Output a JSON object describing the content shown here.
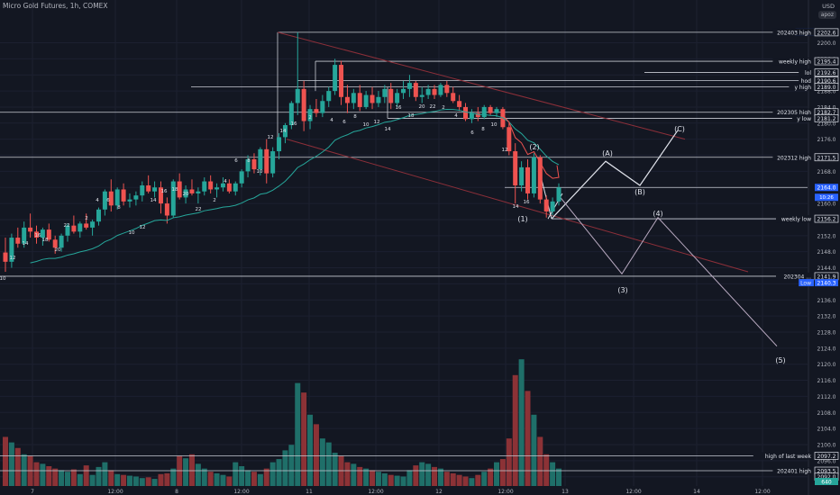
{
  "header": {
    "symbol_title": "Micro Gold Futures, 1h, COMEX",
    "currency": "USD",
    "account_tag": "apoz"
  },
  "chart_data": {
    "type": "candlestick",
    "symbol": "Micro Gold Futures",
    "timeframe": "1h",
    "exchange": "COMEX",
    "price_axis": {
      "labels": [
        "2200.0",
        "2196.0",
        "2192.0",
        "2188.0",
        "2184.0",
        "2180.0",
        "2176.0",
        "2172.0",
        "2168.0",
        "2164.0",
        "2160.0",
        "2156.0",
        "2152.0",
        "2148.0",
        "2144.0",
        "2140.0",
        "2136.0",
        "2132.0",
        "2128.0",
        "2124.0",
        "2120.0",
        "2116.0",
        "2112.0",
        "2108.0",
        "2104.0",
        "2100.0",
        "2096.0",
        "2092.0"
      ],
      "range": [
        2088.0,
        2204.0
      ]
    },
    "time_axis": {
      "labels": [
        "7",
        "12:00",
        "8",
        "12:00",
        "11",
        "12:00",
        "12",
        "12:00",
        "13",
        "12:00",
        "14",
        "12:00"
      ]
    },
    "colors": {
      "background": "#131722",
      "up": "#26a69a",
      "down": "#ef5350",
      "vol_up": "#1f6f69",
      "vol_down": "#8c3236",
      "ema": "#26a69a",
      "projection": "#e0e3eb",
      "alt_projection": "#b8a9c0",
      "channel": "#8c2f39"
    },
    "level_tags": [
      {
        "name": "High",
        "price": "2202.6",
        "style": "blue"
      },
      {
        "name": "202403 high",
        "price": "2202.6",
        "style": "box"
      },
      {
        "name": "weekly high",
        "price": "2195.4",
        "style": "box"
      },
      {
        "name": "lol",
        "price": "2192.6",
        "style": "box"
      },
      {
        "name": "hod",
        "price": "2190.6",
        "style": "box"
      },
      {
        "name": "y high",
        "price": "2189.0",
        "style": "box"
      },
      {
        "name": "202305 high",
        "price": "2182.7",
        "style": "box"
      },
      {
        "name": "y low",
        "price": "2181.2",
        "style": "box"
      },
      {
        "name": "202312 high",
        "price": "2171.5",
        "style": "box"
      },
      {
        "name": "",
        "price": "2164.0",
        "style": "blue"
      },
      {
        "name": "weekly low",
        "price": "2156.2",
        "style": "box"
      },
      {
        "name": "202304 ...",
        "price": "2141.9",
        "style": "box"
      },
      {
        "name": "Low",
        "price": "2140.3",
        "style": "blue"
      },
      {
        "name": "high of last week",
        "price": "2097.2",
        "style": "box"
      },
      {
        "name": "202401 high",
        "price": "2093.5",
        "style": "box"
      },
      {
        "name": "",
        "price": "2092.0",
        "style": "plain"
      }
    ],
    "countdown": "10:26",
    "bottom_tag": "640",
    "wave_labels": [
      "(1)",
      "(2)",
      "(3)",
      "(4)",
      "(5)",
      "(A)",
      "(B)",
      "(C)"
    ],
    "bar_counts": [
      "10",
      "12",
      "14",
      "16",
      "18",
      "20",
      "22",
      "2",
      "4",
      "6",
      "8",
      "10",
      "12",
      "14",
      "16",
      "18",
      "20",
      "22",
      "2",
      "4",
      "6",
      "8",
      "10",
      "12",
      "14",
      "16",
      "2",
      "4",
      "6",
      "8",
      "10",
      "12",
      "14",
      "16",
      "18",
      "20",
      "22",
      "2",
      "4",
      "6",
      "8",
      "10",
      "12",
      "14",
      "16"
    ],
    "candles": [
      [
        2147.8,
        2151.5,
        2143.0,
        2145.5
      ],
      [
        2145.5,
        2152.5,
        2144.0,
        2151.5
      ],
      [
        2151.5,
        2154.0,
        2149.0,
        2150.0
      ],
      [
        2150.0,
        2155.5,
        2149.0,
        2154.0
      ],
      [
        2154.0,
        2157.5,
        2151.5,
        2153.0
      ],
      [
        2153.0,
        2154.5,
        2150.0,
        2151.5
      ],
      [
        2151.5,
        2154.0,
        2149.5,
        2153.5
      ],
      [
        2153.5,
        2155.0,
        2150.5,
        2151.0
      ],
      [
        2151.0,
        2152.0,
        2147.5,
        2149.0
      ],
      [
        2149.0,
        2152.5,
        2148.0,
        2152.0
      ],
      [
        2152.0,
        2155.0,
        2150.5,
        2154.5
      ],
      [
        2154.5,
        2157.0,
        2152.5,
        2153.0
      ],
      [
        2153.0,
        2155.5,
        2151.5,
        2155.0
      ],
      [
        2155.0,
        2157.5,
        2153.5,
        2154.0
      ],
      [
        2154.0,
        2156.0,
        2152.0,
        2155.5
      ],
      [
        2155.5,
        2159.0,
        2154.5,
        2158.5
      ],
      [
        2158.5,
        2163.5,
        2157.0,
        2163.0
      ],
      [
        2163.0,
        2166.0,
        2158.0,
        2159.5
      ],
      [
        2159.5,
        2164.0,
        2158.5,
        2163.5
      ],
      [
        2163.5,
        2165.0,
        2159.5,
        2160.5
      ],
      [
        2160.5,
        2162.5,
        2159.0,
        2161.0
      ],
      [
        2161.0,
        2163.0,
        2159.5,
        2162.0
      ],
      [
        2162.0,
        2165.5,
        2160.5,
        2164.5
      ],
      [
        2164.5,
        2167.0,
        2162.5,
        2163.0
      ],
      [
        2163.0,
        2165.5,
        2161.5,
        2164.0
      ],
      [
        2164.0,
        2165.5,
        2157.5,
        2160.0
      ],
      [
        2160.0,
        2161.5,
        2155.0,
        2157.0
      ],
      [
        2157.0,
        2166.0,
        2156.5,
        2165.5
      ],
      [
        2165.5,
        2167.5,
        2161.0,
        2161.5
      ],
      [
        2161.5,
        2164.5,
        2160.0,
        2163.5
      ],
      [
        2163.5,
        2166.0,
        2162.0,
        2162.5
      ],
      [
        2162.5,
        2164.0,
        2160.0,
        2163.0
      ],
      [
        2163.0,
        2166.5,
        2162.0,
        2165.5
      ],
      [
        2165.5,
        2167.0,
        2162.5,
        2163.5
      ],
      [
        2163.5,
        2165.0,
        2161.5,
        2164.0
      ],
      [
        2164.0,
        2166.5,
        2163.0,
        2165.0
      ],
      [
        2165.0,
        2166.0,
        2162.5,
        2163.0
      ],
      [
        2163.0,
        2165.5,
        2162.0,
        2165.0
      ],
      [
        2165.0,
        2168.5,
        2164.0,
        2168.0
      ],
      [
        2168.0,
        2172.0,
        2166.5,
        2171.0
      ],
      [
        2171.0,
        2172.5,
        2167.5,
        2168.5
      ],
      [
        2168.5,
        2174.0,
        2167.0,
        2173.5
      ],
      [
        2173.5,
        2176.0,
        2165.0,
        2167.5
      ],
      [
        2167.5,
        2174.0,
        2166.5,
        2173.0
      ],
      [
        2173.0,
        2177.5,
        2171.0,
        2176.5
      ],
      [
        2176.5,
        2180.0,
        2175.0,
        2179.5
      ],
      [
        2179.5,
        2185.5,
        2178.5,
        2185.0
      ],
      [
        2185.0,
        2202.6,
        2182.0,
        2188.5
      ],
      [
        2188.5,
        2190.5,
        2178.0,
        2180.5
      ],
      [
        2180.5,
        2184.5,
        2178.5,
        2183.5
      ],
      [
        2183.5,
        2186.0,
        2181.5,
        2182.5
      ],
      [
        2182.5,
        2187.0,
        2181.5,
        2185.5
      ],
      [
        2185.5,
        2189.0,
        2184.0,
        2188.0
      ],
      [
        2188.0,
        2196.0,
        2187.0,
        2194.5
      ],
      [
        2194.5,
        2195.5,
        2184.5,
        2186.5
      ],
      [
        2186.5,
        2189.5,
        2182.5,
        2185.0
      ],
      [
        2185.0,
        2188.5,
        2183.5,
        2187.5
      ],
      [
        2187.5,
        2189.5,
        2183.0,
        2184.0
      ],
      [
        2184.0,
        2188.0,
        2183.5,
        2187.0
      ],
      [
        2187.0,
        2189.0,
        2183.5,
        2185.0
      ],
      [
        2185.0,
        2188.0,
        2184.0,
        2186.5
      ],
      [
        2186.5,
        2189.5,
        2185.0,
        2188.5
      ],
      [
        2188.5,
        2190.0,
        2183.5,
        2185.0
      ],
      [
        2185.0,
        2188.5,
        2184.0,
        2187.5
      ],
      [
        2187.5,
        2190.5,
        2186.0,
        2188.5
      ],
      [
        2188.5,
        2192.0,
        2186.5,
        2190.0
      ],
      [
        2190.0,
        2190.5,
        2185.5,
        2186.5
      ],
      [
        2186.5,
        2189.0,
        2185.0,
        2187.0
      ],
      [
        2187.0,
        2189.5,
        2186.0,
        2188.5
      ],
      [
        2188.5,
        2189.5,
        2186.0,
        2187.0
      ],
      [
        2187.0,
        2190.0,
        2186.5,
        2189.5
      ],
      [
        2189.5,
        2190.5,
        2186.5,
        2187.5
      ],
      [
        2187.5,
        2189.0,
        2185.0,
        2185.5
      ],
      [
        2185.5,
        2187.0,
        2183.0,
        2184.0
      ],
      [
        2184.0,
        2185.0,
        2180.5,
        2181.0
      ],
      [
        2181.0,
        2183.5,
        2180.0,
        2182.5
      ],
      [
        2182.5,
        2184.0,
        2180.5,
        2181.5
      ],
      [
        2181.5,
        2184.5,
        2181.0,
        2184.0
      ],
      [
        2184.0,
        2184.5,
        2182.0,
        2182.5
      ],
      [
        2182.5,
        2184.0,
        2181.5,
        2183.5
      ],
      [
        2183.5,
        2184.0,
        2178.5,
        2179.0
      ],
      [
        2179.0,
        2180.0,
        2172.0,
        2173.0
      ],
      [
        2173.0,
        2175.0,
        2160.0,
        2164.5
      ],
      [
        2164.5,
        2170.5,
        2163.0,
        2169.0
      ],
      [
        2169.0,
        2171.0,
        2161.0,
        2162.5
      ],
      [
        2162.5,
        2172.5,
        2161.5,
        2171.5
      ],
      [
        2171.5,
        2172.0,
        2160.0,
        2161.0
      ],
      [
        2161.0,
        2162.0,
        2156.5,
        2158.0
      ],
      [
        2158.0,
        2161.5,
        2157.0,
        2160.5
      ],
      [
        2160.5,
        2165.0,
        2159.5,
        2164.0
      ]
    ],
    "volume_up": [
      false,
      true,
      false,
      true,
      false,
      false,
      true,
      false,
      false,
      true,
      true,
      false,
      true,
      false,
      true,
      true,
      true,
      false,
      true,
      false,
      true,
      true,
      true,
      false,
      true,
      false,
      false,
      true,
      false,
      true,
      false,
      true,
      true,
      false,
      true,
      true,
      false,
      true,
      true,
      true,
      false,
      true,
      false,
      true,
      true,
      true,
      true,
      true,
      false,
      true,
      false,
      true,
      true,
      true,
      false,
      false,
      true,
      false,
      true,
      false,
      true,
      true,
      false,
      true,
      true,
      true,
      false,
      true,
      true,
      false,
      true,
      false,
      false,
      false,
      false,
      true,
      false,
      true,
      false,
      true,
      false,
      false,
      false,
      true,
      false,
      true,
      false,
      false,
      true,
      true
    ],
    "volume": [
      62,
      55,
      48,
      40,
      38,
      30,
      28,
      25,
      22,
      20,
      18,
      21,
      15,
      26,
      14,
      24,
      30,
      20,
      15,
      14,
      13,
      12,
      10,
      11,
      9,
      15,
      16,
      22,
      38,
      35,
      40,
      28,
      22,
      18,
      16,
      14,
      12,
      30,
      25,
      20,
      18,
      15,
      22,
      30,
      34,
      45,
      52,
      130,
      118,
      90,
      78,
      60,
      55,
      42,
      38,
      30,
      28,
      24,
      22,
      20,
      18,
      16,
      14,
      13,
      12,
      20,
      26,
      30,
      28,
      24,
      22,
      18,
      16,
      14,
      12,
      10,
      14,
      18,
      22,
      30,
      34,
      60,
      140,
      160,
      120,
      90,
      62,
      40,
      30,
      22
    ]
  }
}
